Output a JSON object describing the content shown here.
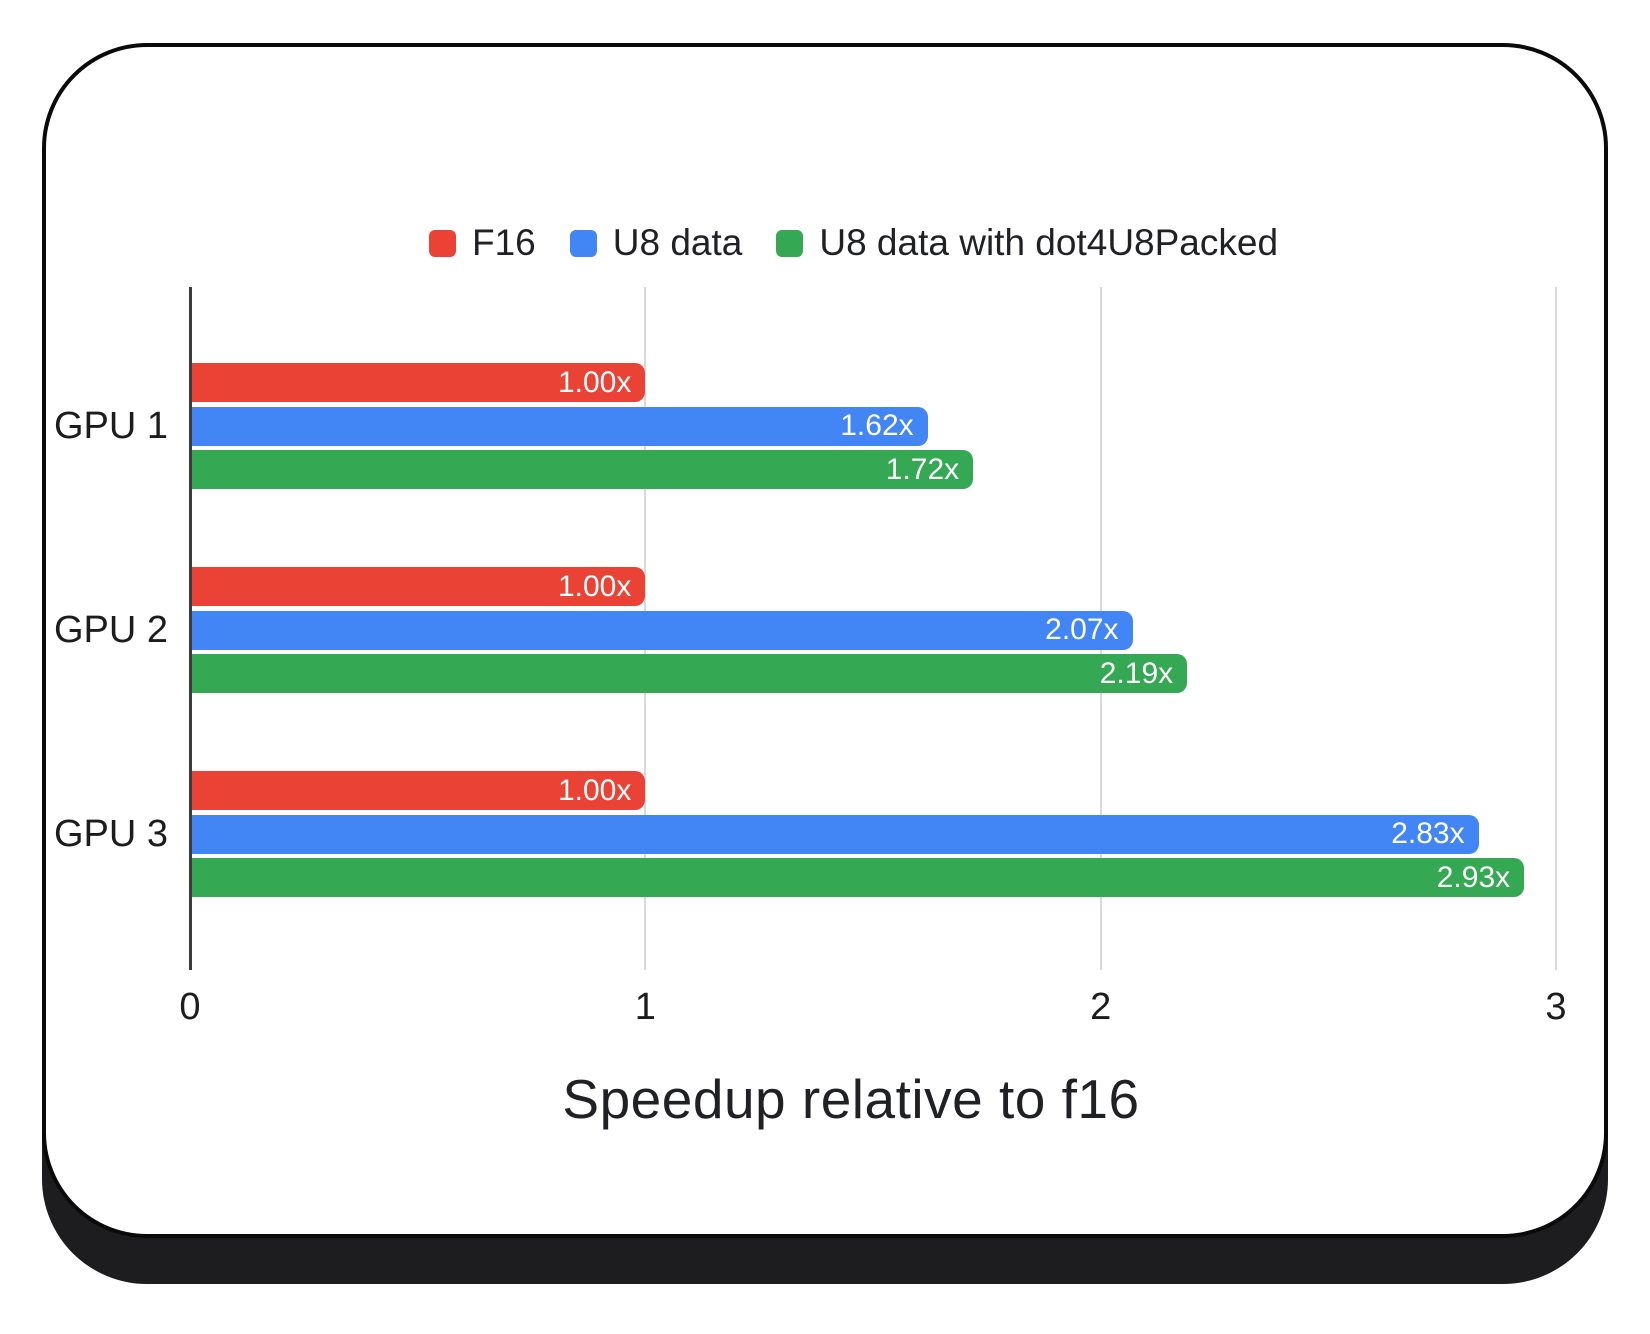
{
  "chart_data": {
    "type": "bar",
    "orientation": "horizontal",
    "title": "",
    "xlabel": "Speedup relative to f16",
    "ylabel": "",
    "categories": [
      "GPU 1",
      "GPU 2",
      "GPU 3"
    ],
    "series": [
      {
        "name": "F16",
        "color": "#EA4335",
        "values": [
          1.0,
          1.0,
          1.0
        ],
        "bar_labels": [
          "1.00x",
          "1.00x",
          "1.00x"
        ]
      },
      {
        "name": "U8 data",
        "color": "#4285F4",
        "values": [
          1.62,
          2.07,
          2.83
        ],
        "bar_labels": [
          "1.62x",
          "2.07x",
          "2.83x"
        ]
      },
      {
        "name": "U8 data with dot4U8Packed",
        "color": "#34A853",
        "values": [
          1.72,
          2.19,
          2.93
        ],
        "bar_labels": [
          "1.72x",
          "2.19x",
          "2.93x"
        ]
      }
    ],
    "x_ticks": [
      "0",
      "1",
      "2",
      "3"
    ],
    "xlim": [
      0,
      3
    ],
    "grid": true,
    "legend_position": "top",
    "colors": {
      "axis_line": "#3c3c3c",
      "gridline": "#d9d9d9",
      "text": "#202124",
      "bar_label_text": "#ffffff",
      "card_border": "#0a0a0a",
      "card_shadow": "#1d1d20",
      "background": "#ffffff"
    }
  }
}
